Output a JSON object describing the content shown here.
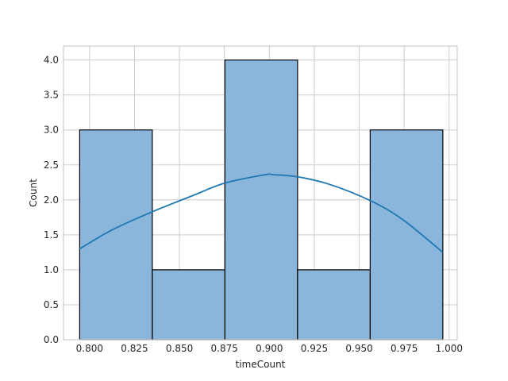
{
  "chart_data": {
    "type": "bar",
    "title": "",
    "xlabel": "timeCount",
    "ylabel": "Count",
    "grid": true,
    "xlim": [
      0.7855,
      1.0045
    ],
    "ylim": [
      0,
      4.2
    ],
    "xticks": [
      "0.800",
      "0.825",
      "0.850",
      "0.875",
      "0.900",
      "0.925",
      "0.950",
      "0.975",
      "1.000"
    ],
    "yticks": [
      "0.0",
      "0.5",
      "1.0",
      "1.5",
      "2.0",
      "2.5",
      "3.0",
      "3.5",
      "4.0"
    ],
    "bins": [
      {
        "start": 0.7945,
        "end": 0.8349,
        "count": 3
      },
      {
        "start": 0.8349,
        "end": 0.8753,
        "count": 1
      },
      {
        "start": 0.8753,
        "end": 0.9157,
        "count": 4
      },
      {
        "start": 0.9157,
        "end": 0.9561,
        "count": 1
      },
      {
        "start": 0.9561,
        "end": 0.9965,
        "count": 3
      }
    ],
    "kde": {
      "x": [
        0.7945,
        0.8125,
        0.8349,
        0.8573,
        0.8753,
        0.8978,
        0.9022,
        0.9157,
        0.9337,
        0.9561,
        0.9741,
        0.9965
      ],
      "y": [
        1.3,
        1.57,
        1.83,
        2.06,
        2.24,
        2.36,
        2.36,
        2.33,
        2.22,
        1.99,
        1.72,
        1.25
      ]
    },
    "colors": {
      "bar_fill": "#8ab6db",
      "bar_edge": "#000000",
      "kde_line": "#1f77b4",
      "grid": "#cccccc",
      "axes_edge": "#cccccc"
    }
  }
}
